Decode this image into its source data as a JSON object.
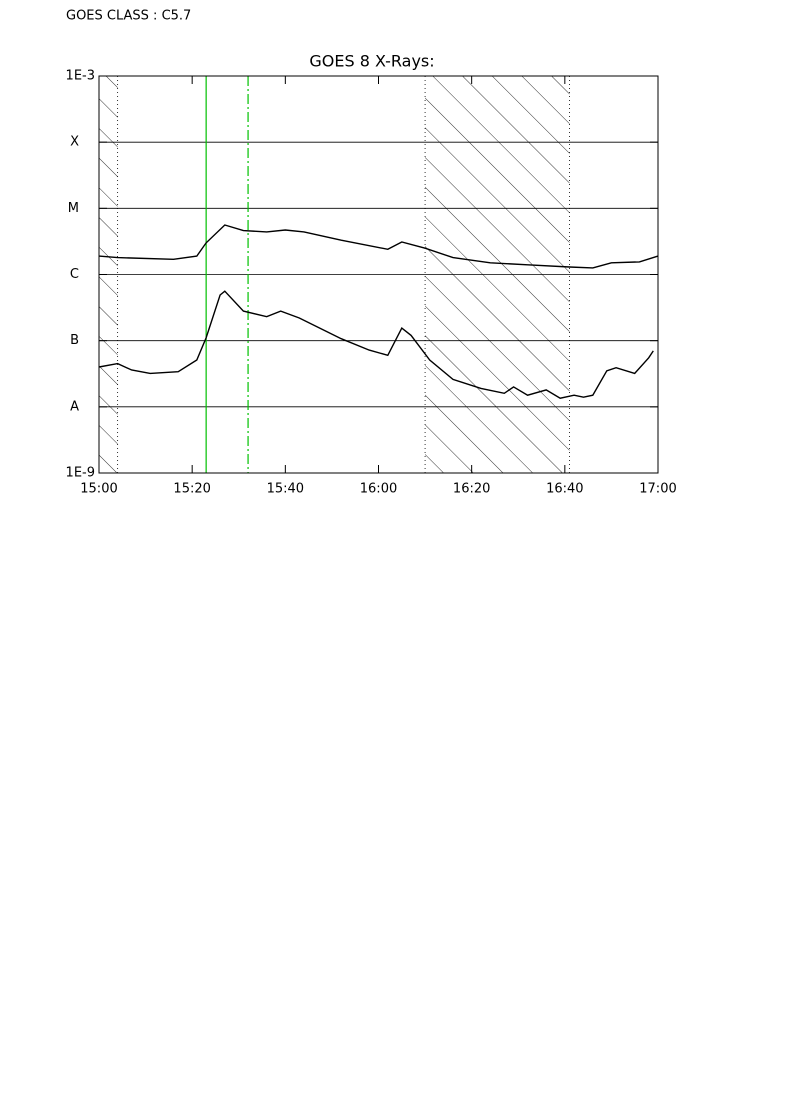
{
  "header": {
    "text": "GOES CLASS : C5.7"
  },
  "chart_data": {
    "type": "line",
    "title": "GOES 8 X-Rays:",
    "log_scale": true,
    "grid": true,
    "xlim": [
      "15:00",
      "17:00"
    ],
    "xticks": [
      "15:00",
      "15:20",
      "15:40",
      "16:00",
      "16:20",
      "16:40",
      "17:00"
    ],
    "ylim": [
      1e-09,
      0.001
    ],
    "yticks": [
      {
        "value": 1e-09,
        "label": "1E-9"
      },
      {
        "value": 1e-08,
        "label": "A"
      },
      {
        "value": 1e-07,
        "label": "B"
      },
      {
        "value": 1e-06,
        "label": "C"
      },
      {
        "value": 1e-05,
        "label": "M"
      },
      {
        "value": 0.0001,
        "label": "X"
      },
      {
        "value": 0.001,
        "label": "1E-3"
      }
    ],
    "shaded_intervals": [
      {
        "start": "15:00",
        "end": "15:04"
      },
      {
        "start": "16:10",
        "end": "16:41"
      }
    ],
    "markers": [
      {
        "time": "15:23",
        "color": "#00c000",
        "style": "solid"
      },
      {
        "time": "15:32",
        "color": "#00c000",
        "style": "dashdot"
      }
    ],
    "series": [
      {
        "color": "#000000",
        "x": [
          "15:00",
          "15:04",
          "15:16",
          "15:21",
          "15:23",
          "15:27",
          "15:31",
          "15:36",
          "15:40",
          "15:44",
          "15:52",
          "16:02",
          "16:05",
          "16:10",
          "16:16",
          "16:24",
          "16:32",
          "16:41",
          "16:46",
          "16:50",
          "16:56",
          "17:00"
        ],
        "values": [
          1.9e-06,
          1.8e-06,
          1.7e-06,
          1.9e-06,
          3e-06,
          5.6e-06,
          4.6e-06,
          4.4e-06,
          4.7e-06,
          4.4e-06,
          3.3e-06,
          2.4e-06,
          3.1e-06,
          2.5e-06,
          1.8e-06,
          1.5e-06,
          1.4e-06,
          1.3e-06,
          1.26e-06,
          1.5e-06,
          1.55e-06,
          1.9e-06
        ]
      },
      {
        "color": "#000000",
        "x": [
          "15:00",
          "15:04",
          "15:07",
          "15:11",
          "15:17",
          "15:21",
          "15:23",
          "15:26",
          "15:27",
          "15:31",
          "15:36",
          "15:39",
          "15:43",
          "15:52",
          "15:58",
          "16:02",
          "16:05",
          "16:07",
          "16:11",
          "16:16",
          "16:22",
          "16:27",
          "16:29",
          "16:32",
          "16:36",
          "16:39",
          "16:42",
          "16:44",
          "16:46",
          "16:49",
          "16:51",
          "16:55",
          "16:58",
          "16:59"
        ],
        "values": [
          4e-08,
          4.5e-08,
          3.6e-08,
          3.2e-08,
          3.4e-08,
          5.1e-08,
          1.1e-07,
          4.9e-07,
          5.6e-07,
          2.8e-07,
          2.3e-07,
          2.8e-07,
          2.2e-07,
          1.07e-07,
          7.2e-08,
          6e-08,
          1.55e-07,
          1.2e-07,
          5.1e-08,
          2.6e-08,
          1.9e-08,
          1.6e-08,
          2e-08,
          1.5e-08,
          1.8e-08,
          1.35e-08,
          1.5e-08,
          1.4e-08,
          1.5e-08,
          3.5e-08,
          3.9e-08,
          3.2e-08,
          5.5e-08,
          7e-08
        ]
      }
    ]
  }
}
